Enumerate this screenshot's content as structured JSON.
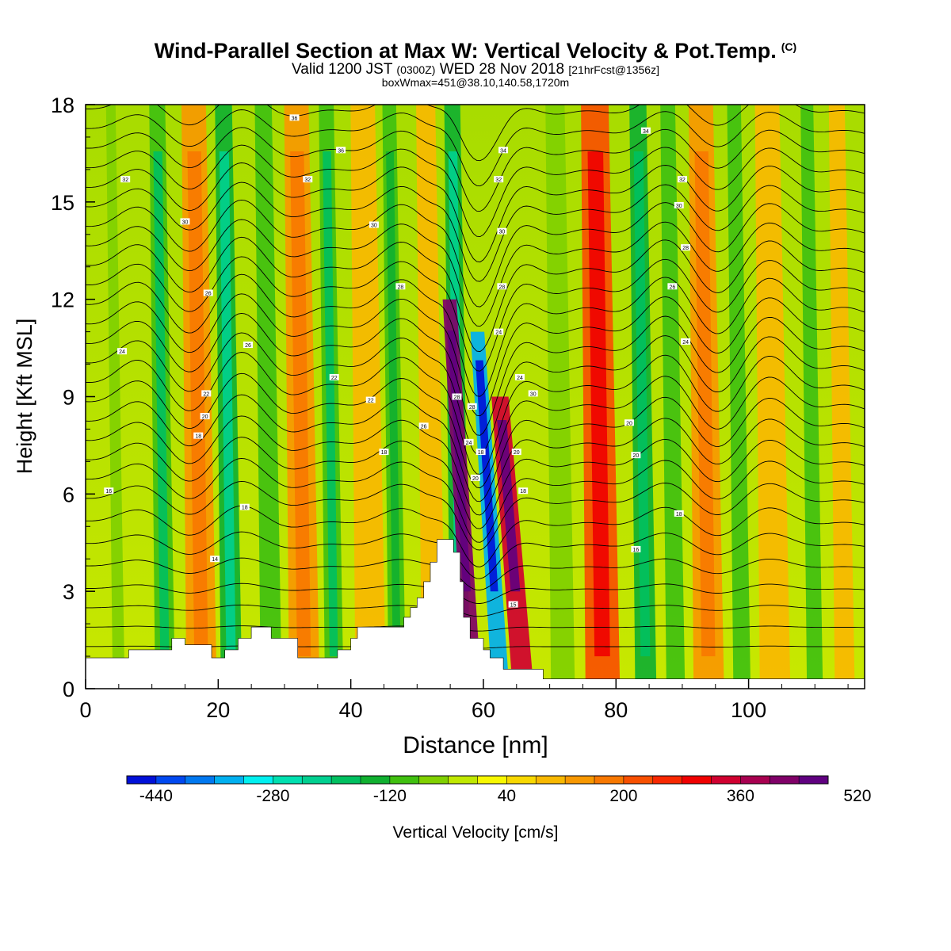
{
  "header": {
    "title": "Wind-Parallel Section at Max W: Vertical Velocity & Pot.Temp.",
    "copyright": "(C)",
    "valid_prefix": "Valid 1200 JST",
    "valid_utc": "(0300Z)",
    "valid_date": "WED 28 Nov 2018",
    "forecast": "[21hrFcst@1356z]",
    "box_info": "boxWmax=451@38.10,140.58,1720m"
  },
  "colors": {
    "plot_border": "#000000",
    "terrain": "#ffffff",
    "contour": "#000000"
  },
  "chart_data": {
    "type": "heatmap",
    "title": "Wind-Parallel Section at Max W: Vertical Velocity & Pot.Temp.",
    "xlabel": "Distance [nm]",
    "ylabel": "Height [Kft MSL]",
    "xlim": [
      0,
      117.5
    ],
    "ylim": [
      0,
      18
    ],
    "xticks": [
      0,
      20,
      40,
      60,
      80,
      100
    ],
    "yticks": [
      0,
      3,
      6,
      9,
      12,
      15,
      18
    ],
    "colorbar": {
      "label": "Vertical Velocity [cm/s]",
      "min": -480,
      "step": 40,
      "tick_labels": [
        "-440",
        "-280",
        "-120",
        "40",
        "200",
        "360",
        "520"
      ],
      "tick_values": [
        -440,
        -280,
        -120,
        40,
        200,
        360,
        520
      ],
      "colors": [
        "#0010d8",
        "#0048f0",
        "#0078f0",
        "#00b0f0",
        "#00f0f0",
        "#00e0b0",
        "#00d090",
        "#00c060",
        "#10b030",
        "#40c010",
        "#80d000",
        "#c0e800",
        "#f8f800",
        "#f8d800",
        "#f8b800",
        "#f89800",
        "#f87800",
        "#f85000",
        "#f82800",
        "#f00000",
        "#d00030",
        "#a80050",
        "#800068",
        "#600080"
      ]
    },
    "terrain_profile": [
      [
        0,
        0.95
      ],
      [
        6.5,
        0.95
      ],
      [
        6.5,
        1.2
      ],
      [
        13,
        1.2
      ],
      [
        13,
        1.55
      ],
      [
        15,
        1.55
      ],
      [
        15,
        1.35
      ],
      [
        19,
        1.35
      ],
      [
        19,
        0.95
      ],
      [
        21,
        0.95
      ],
      [
        21,
        1.2
      ],
      [
        23,
        1.2
      ],
      [
        23,
        1.55
      ],
      [
        25,
        1.55
      ],
      [
        25,
        1.9
      ],
      [
        28,
        1.9
      ],
      [
        28,
        1.55
      ],
      [
        32,
        1.55
      ],
      [
        32,
        0.95
      ],
      [
        38,
        0.95
      ],
      [
        38,
        1.2
      ],
      [
        40,
        1.2
      ],
      [
        40,
        1.55
      ],
      [
        41,
        1.55
      ],
      [
        41,
        1.9
      ],
      [
        48,
        1.9
      ],
      [
        48,
        2.2
      ],
      [
        49,
        2.2
      ],
      [
        49,
        2.5
      ],
      [
        50,
        2.5
      ],
      [
        50,
        2.8
      ],
      [
        51,
        2.8
      ],
      [
        51,
        3.3
      ],
      [
        52,
        3.3
      ],
      [
        52,
        3.9
      ],
      [
        53,
        3.9
      ],
      [
        53,
        4.6
      ],
      [
        54,
        4.6
      ],
      [
        54,
        4.6
      ],
      [
        55.5,
        4.6
      ],
      [
        55.5,
        4.2
      ],
      [
        56.5,
        4.2
      ],
      [
        56.5,
        3.3
      ],
      [
        57,
        3.3
      ],
      [
        57,
        2.2
      ],
      [
        58,
        2.2
      ],
      [
        58,
        1.55
      ],
      [
        60,
        1.55
      ],
      [
        60,
        1.2
      ],
      [
        61,
        1.2
      ],
      [
        61,
        0.95
      ],
      [
        63,
        0.95
      ],
      [
        63,
        0.6
      ],
      [
        69,
        0.6
      ],
      [
        69,
        0.3
      ],
      [
        117.5,
        0.3
      ]
    ],
    "velocity_bands": [
      {
        "x": 5,
        "w": 0.9,
        "top": 18,
        "value": -80
      },
      {
        "x": 12,
        "w": 1.5,
        "top": 18,
        "value": -120
      },
      {
        "x": 17.5,
        "w": 2.3,
        "top": 18,
        "value": 120
      },
      {
        "x": 22,
        "w": 1.6,
        "top": 18,
        "value": -140
      },
      {
        "x": 28,
        "w": 1.6,
        "top": 18,
        "value": -100
      },
      {
        "x": 33,
        "w": 2.3,
        "top": 18,
        "value": 120
      },
      {
        "x": 37.5,
        "w": 1.4,
        "top": 18,
        "value": -120
      },
      {
        "x": 43,
        "w": 2.3,
        "top": 18,
        "value": 80
      },
      {
        "x": 47,
        "w": 1.3,
        "top": 18,
        "value": -110
      },
      {
        "x": 52.5,
        "w": 1.8,
        "top": 18,
        "value": 100
      },
      {
        "x": 56.5,
        "w": 1.5,
        "top": 18,
        "value": -150
      },
      {
        "x": 58.4,
        "w": 1.3,
        "top": 12,
        "value": 400
      },
      {
        "x": 62.6,
        "w": 1.3,
        "top": 11,
        "value": -340
      },
      {
        "x": 66,
        "w": 1.6,
        "top": 9,
        "value": 340
      },
      {
        "x": 72,
        "w": 1.8,
        "top": 18,
        "value": -80
      },
      {
        "x": 78,
        "w": 2.6,
        "top": 18,
        "value": 200
      },
      {
        "x": 84.5,
        "w": 1.6,
        "top": 18,
        "value": -130
      },
      {
        "x": 89,
        "w": 1.4,
        "top": 18,
        "value": -100
      },
      {
        "x": 94,
        "w": 2.3,
        "top": 18,
        "value": 120
      },
      {
        "x": 99,
        "w": 1.3,
        "top": 18,
        "value": -100
      },
      {
        "x": 104,
        "w": 2.3,
        "top": 18,
        "value": 100
      },
      {
        "x": 110,
        "w": 1.2,
        "top": 18,
        "value": -90
      },
      {
        "x": 114.5,
        "w": 1.5,
        "top": 18,
        "value": 80
      }
    ],
    "isentropes": [
      {
        "base": 1.3,
        "amp": 0.2
      },
      {
        "base": 1.9,
        "amp": 0.3
      },
      {
        "base": 2.5,
        "amp": 0.4
      },
      {
        "base": 3.1,
        "amp": 0.5
      },
      {
        "base": 3.8,
        "amp": 0.6
      },
      {
        "base": 4.5,
        "amp": 0.7
      },
      {
        "base": 5.2,
        "amp": 0.8
      },
      {
        "base": 5.9,
        "amp": 0.9
      },
      {
        "base": 6.5,
        "amp": 1.1
      },
      {
        "base": 7.1,
        "amp": 1.2
      },
      {
        "base": 7.7,
        "amp": 1.3
      },
      {
        "base": 8.3,
        "amp": 1.4
      },
      {
        "base": 8.9,
        "amp": 1.5
      },
      {
        "base": 9.5,
        "amp": 1.6
      },
      {
        "base": 10.1,
        "amp": 1.6
      },
      {
        "base": 10.7,
        "amp": 1.6
      },
      {
        "base": 11.3,
        "amp": 1.6
      },
      {
        "base": 11.9,
        "amp": 1.6
      },
      {
        "base": 12.5,
        "amp": 1.5
      },
      {
        "base": 13.1,
        "amp": 1.5
      },
      {
        "base": 13.7,
        "amp": 1.4
      },
      {
        "base": 14.3,
        "amp": 1.4
      },
      {
        "base": 14.9,
        "amp": 1.3
      },
      {
        "base": 15.5,
        "amp": 1.3
      },
      {
        "base": 16.1,
        "amp": 1.2
      },
      {
        "base": 16.7,
        "amp": 1.1
      },
      {
        "base": 17.3,
        "amp": 1.0
      },
      {
        "base": 17.9,
        "amp": 0.9
      }
    ],
    "contour_labels": [
      {
        "x": 5.5,
        "y": 10.4,
        "text": "24"
      },
      {
        "x": 6,
        "y": 15.7,
        "text": "32"
      },
      {
        "x": 3.5,
        "y": 6.1,
        "text": "16"
      },
      {
        "x": 15,
        "y": 14.4,
        "text": "30"
      },
      {
        "x": 18.5,
        "y": 12.2,
        "text": "26"
      },
      {
        "x": 17,
        "y": 7.8,
        "text": "18"
      },
      {
        "x": 18,
        "y": 8.4,
        "text": "20"
      },
      {
        "x": 18.2,
        "y": 9.1,
        "text": "22"
      },
      {
        "x": 19.5,
        "y": 4.0,
        "text": "14"
      },
      {
        "x": 24.5,
        "y": 10.6,
        "text": "26"
      },
      {
        "x": 24,
        "y": 5.6,
        "text": "18"
      },
      {
        "x": 31.5,
        "y": 17.6,
        "text": "36"
      },
      {
        "x": 33.5,
        "y": 15.7,
        "text": "32"
      },
      {
        "x": 38.5,
        "y": 16.6,
        "text": "36"
      },
      {
        "x": 37.5,
        "y": 9.6,
        "text": "22"
      },
      {
        "x": 43,
        "y": 8.9,
        "text": "22"
      },
      {
        "x": 45,
        "y": 7.3,
        "text": "18"
      },
      {
        "x": 43.5,
        "y": 14.3,
        "text": "30"
      },
      {
        "x": 47.5,
        "y": 12.4,
        "text": "28"
      },
      {
        "x": 51,
        "y": 8.1,
        "text": "26"
      },
      {
        "x": 56,
        "y": 9.0,
        "text": "28"
      },
      {
        "x": 58.3,
        "y": 8.7,
        "text": "28"
      },
      {
        "x": 57.8,
        "y": 7.6,
        "text": "24"
      },
      {
        "x": 58.8,
        "y": 6.5,
        "text": "20"
      },
      {
        "x": 59.6,
        "y": 7.3,
        "text": "18"
      },
      {
        "x": 63,
        "y": 16.6,
        "text": "34"
      },
      {
        "x": 62.3,
        "y": 15.7,
        "text": "32"
      },
      {
        "x": 62.8,
        "y": 14.1,
        "text": "30"
      },
      {
        "x": 62.8,
        "y": 12.4,
        "text": "28"
      },
      {
        "x": 62.3,
        "y": 11.0,
        "text": "24"
      },
      {
        "x": 65.5,
        "y": 9.6,
        "text": "24"
      },
      {
        "x": 67.5,
        "y": 9.1,
        "text": "30"
      },
      {
        "x": 65,
        "y": 7.3,
        "text": "20"
      },
      {
        "x": 66,
        "y": 6.1,
        "text": "18"
      },
      {
        "x": 64.5,
        "y": 2.6,
        "text": "15"
      },
      {
        "x": 84.5,
        "y": 17.2,
        "text": "34"
      },
      {
        "x": 90,
        "y": 15.7,
        "text": "32"
      },
      {
        "x": 89.5,
        "y": 14.9,
        "text": "30"
      },
      {
        "x": 90.5,
        "y": 13.6,
        "text": "28"
      },
      {
        "x": 88.5,
        "y": 12.4,
        "text": "26"
      },
      {
        "x": 90.5,
        "y": 10.7,
        "text": "24"
      },
      {
        "x": 82,
        "y": 8.2,
        "text": "20"
      },
      {
        "x": 83,
        "y": 7.2,
        "text": "20"
      },
      {
        "x": 89.5,
        "y": 5.4,
        "text": "18"
      },
      {
        "x": 83,
        "y": 4.3,
        "text": "16"
      }
    ]
  }
}
